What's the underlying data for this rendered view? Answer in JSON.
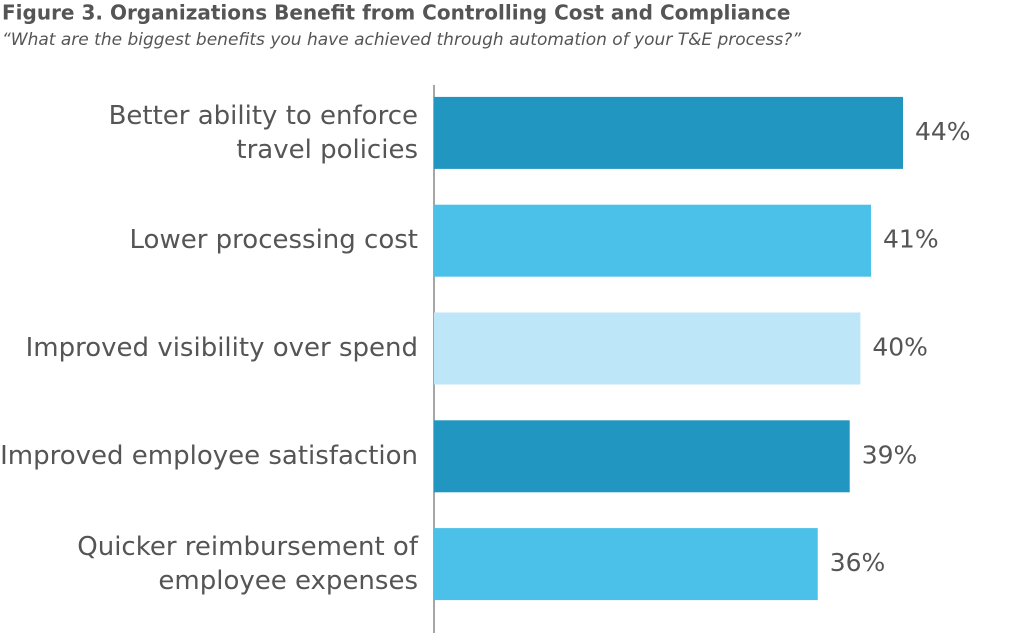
{
  "chart_data": {
    "type": "hbar",
    "title": "Figure 3. Organizations Benefit from Controlling Cost and Compliance",
    "subtitle": "“What are the biggest benefits you have achieved through automation of your T&E process?”",
    "categories": [
      "Better ability to enforce\ntravel policies",
      "Lower processing cost",
      "Improved visibility over spend",
      "Improved employee satisfaction",
      "Quicker reimbursement of\nemployee expenses"
    ],
    "values": [
      44,
      41,
      40,
      39,
      36
    ],
    "value_labels": [
      "44%",
      "41%",
      "40%",
      "39%",
      "36%"
    ],
    "colors": [
      "#2196c0",
      "#4bc0e8",
      "#bde6f8",
      "#2196c0",
      "#4bc0e8"
    ],
    "xlim": [
      0,
      44
    ]
  }
}
